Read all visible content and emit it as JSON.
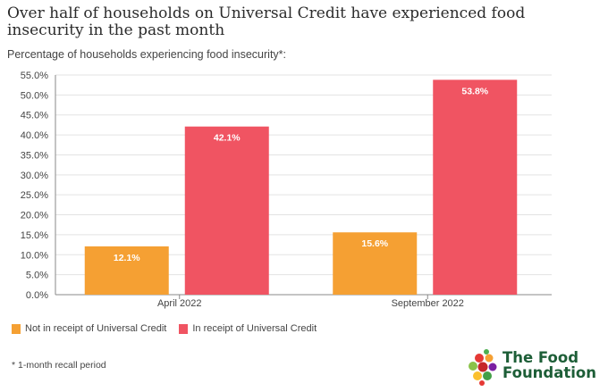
{
  "title": "Over half of households on Universal Credit have experienced food insecurity in the past month",
  "subtitle": "Percentage of households experiencing food insecurity*:",
  "footnote": "* 1-month recall period",
  "logo": {
    "line1": "The Food",
    "line2": "Foundation"
  },
  "colors": {
    "not_uc": "#f5a033",
    "uc": "#f05462",
    "grid": "#e3e3e3",
    "axis": "#888888"
  },
  "chart_data": {
    "type": "bar",
    "categories": [
      "April 2022",
      "September 2022"
    ],
    "series": [
      {
        "name": "Not in receipt of Universal Credit",
        "values": [
          12.1,
          15.6
        ],
        "labels": [
          "12.1%",
          "15.6%"
        ]
      },
      {
        "name": "In receipt of Universal Credit",
        "values": [
          42.1,
          53.8
        ],
        "labels": [
          "42.1%",
          "53.8%"
        ]
      }
    ],
    "ylim": [
      0,
      55
    ],
    "yticks": [
      "0.0%",
      "5.0%",
      "10.0%",
      "15.0%",
      "20.0%",
      "25.0%",
      "30.0%",
      "35.0%",
      "40.0%",
      "45.0%",
      "50.0%",
      "55.0%"
    ],
    "grid": true,
    "legend": "bottom-left"
  }
}
